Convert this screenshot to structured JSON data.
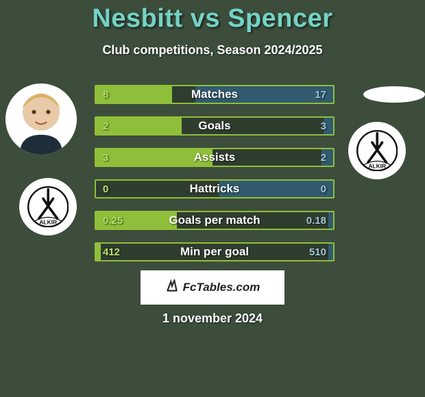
{
  "background_color": "#3c4d3b",
  "title": {
    "text": "Nesbitt vs Spencer",
    "color": "#74d2c6",
    "fontsize": 38
  },
  "subtitle": {
    "text": "Club competitions, Season 2024/2025",
    "color": "#ffffff",
    "fontsize": 18
  },
  "player_left": {
    "name": "Nesbitt"
  },
  "player_right": {
    "name": "Spencer"
  },
  "club_badge_text": "ALKIR",
  "bars": {
    "bar_bg_color": "#2f3d2e",
    "bar_border_color": "#8fbf3a",
    "fill_left_color": "#8fbf3a",
    "fill_right_color": "#315a6e",
    "label_color": "#ffffff",
    "val_left_color": "#b8e06b",
    "val_right_color": "#9fc7d6",
    "rows": [
      {
        "label": "Matches",
        "left": "8",
        "right": "17",
        "left_pct": 32,
        "right_pct": 58
      },
      {
        "label": "Goals",
        "left": "2",
        "right": "3",
        "left_pct": 36,
        "right_pct": 4
      },
      {
        "label": "Assists",
        "left": "3",
        "right": "2",
        "left_pct": 49,
        "right_pct": 5
      },
      {
        "label": "Hattricks",
        "left": "0",
        "right": "0",
        "left_pct": 0,
        "right_pct": 48
      },
      {
        "label": "Goals per match",
        "left": "0.25",
        "right": "0.18",
        "left_pct": 34,
        "right_pct": 2
      },
      {
        "label": "Min per goal",
        "left": "412",
        "right": "510",
        "left_pct": 2,
        "right_pct": 2
      }
    ]
  },
  "footer": {
    "brand": "FcTables.com"
  },
  "date": {
    "text": "1 november 2024",
    "color": "#ffffff"
  }
}
